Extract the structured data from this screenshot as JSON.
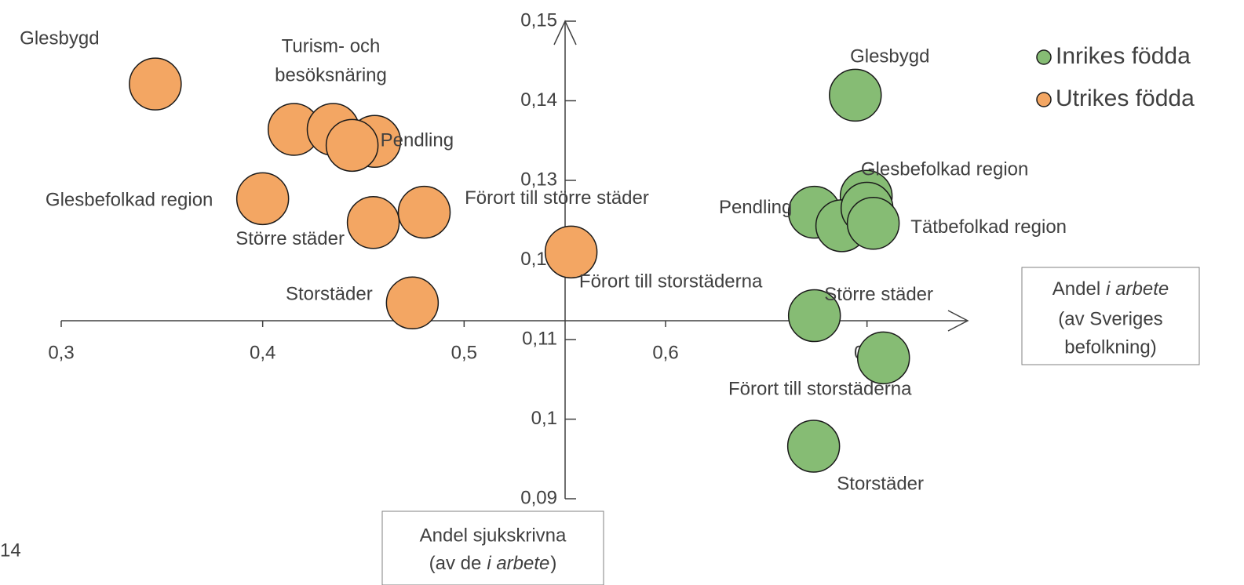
{
  "chart_data": {
    "type": "scatter",
    "page_number": "14",
    "xlabel": [
      "Andel",
      "i arbete",
      "(av Sveriges",
      "befolkning)"
    ],
    "ylabel": [
      "Andel sjukskrivna",
      "(av de",
      "i arbete",
      ")"
    ],
    "xlim": [
      0.3,
      0.75
    ],
    "ylim": [
      0.09,
      0.15
    ],
    "xticks": [
      {
        "value": 0.3,
        "label": "0,3"
      },
      {
        "value": 0.4,
        "label": "0,4"
      },
      {
        "value": 0.5,
        "label": "0,5"
      },
      {
        "value": 0.6,
        "label": "0,6"
      },
      {
        "value": 0.7,
        "label": "0,7"
      }
    ],
    "yticks": [
      {
        "value": 0.09,
        "label": "0,09"
      },
      {
        "value": 0.1,
        "label": "0,1"
      },
      {
        "value": 0.11,
        "label": "0,11"
      },
      {
        "value": 0.12,
        "label": "0,12"
      },
      {
        "value": 0.13,
        "label": "0,13"
      },
      {
        "value": 0.14,
        "label": "0,14"
      },
      {
        "value": 0.15,
        "label": "0,15"
      }
    ],
    "legend": "top-right",
    "series": [
      {
        "name": "Inrikes födda",
        "color": "#86bc74",
        "x": [
          0.6942,
          0.6996,
          0.6739,
          0.6875,
          0.7,
          0.7031,
          0.6739,
          0.7082,
          0.6735
        ],
        "y": [
          0.1407,
          0.128,
          0.126,
          0.1243,
          0.1265,
          0.1246,
          0.113,
          0.1077,
          0.0966
        ],
        "labels": [
          "Glesbygd",
          "Glesbefolkad region",
          "Pendling",
          null,
          null,
          "Tätbefolkad region",
          "Större städer",
          "Förort till storstäderna",
          "Storstäder"
        ]
      },
      {
        "name": "Utrikes födda",
        "color": "#f3a663",
        "x": [
          0.3467,
          0.4156,
          0.435,
          0.4556,
          0.4444,
          0.4,
          0.4549,
          0.4802,
          0.5531,
          0.4743
        ],
        "y": [
          0.1421,
          0.1364,
          0.1364,
          0.1349,
          0.1344,
          0.1277,
          0.1247,
          0.126,
          0.121,
          0.1146
        ],
        "labels": [
          "Glesbygd",
          null,
          [
            "Turism- och",
            "besöksnäring"
          ],
          "Pendling",
          null,
          "Glesbefolkad region",
          "Större städer",
          "Förort till större städer",
          "Förort till storstäderna",
          "Storstäder"
        ]
      }
    ]
  }
}
